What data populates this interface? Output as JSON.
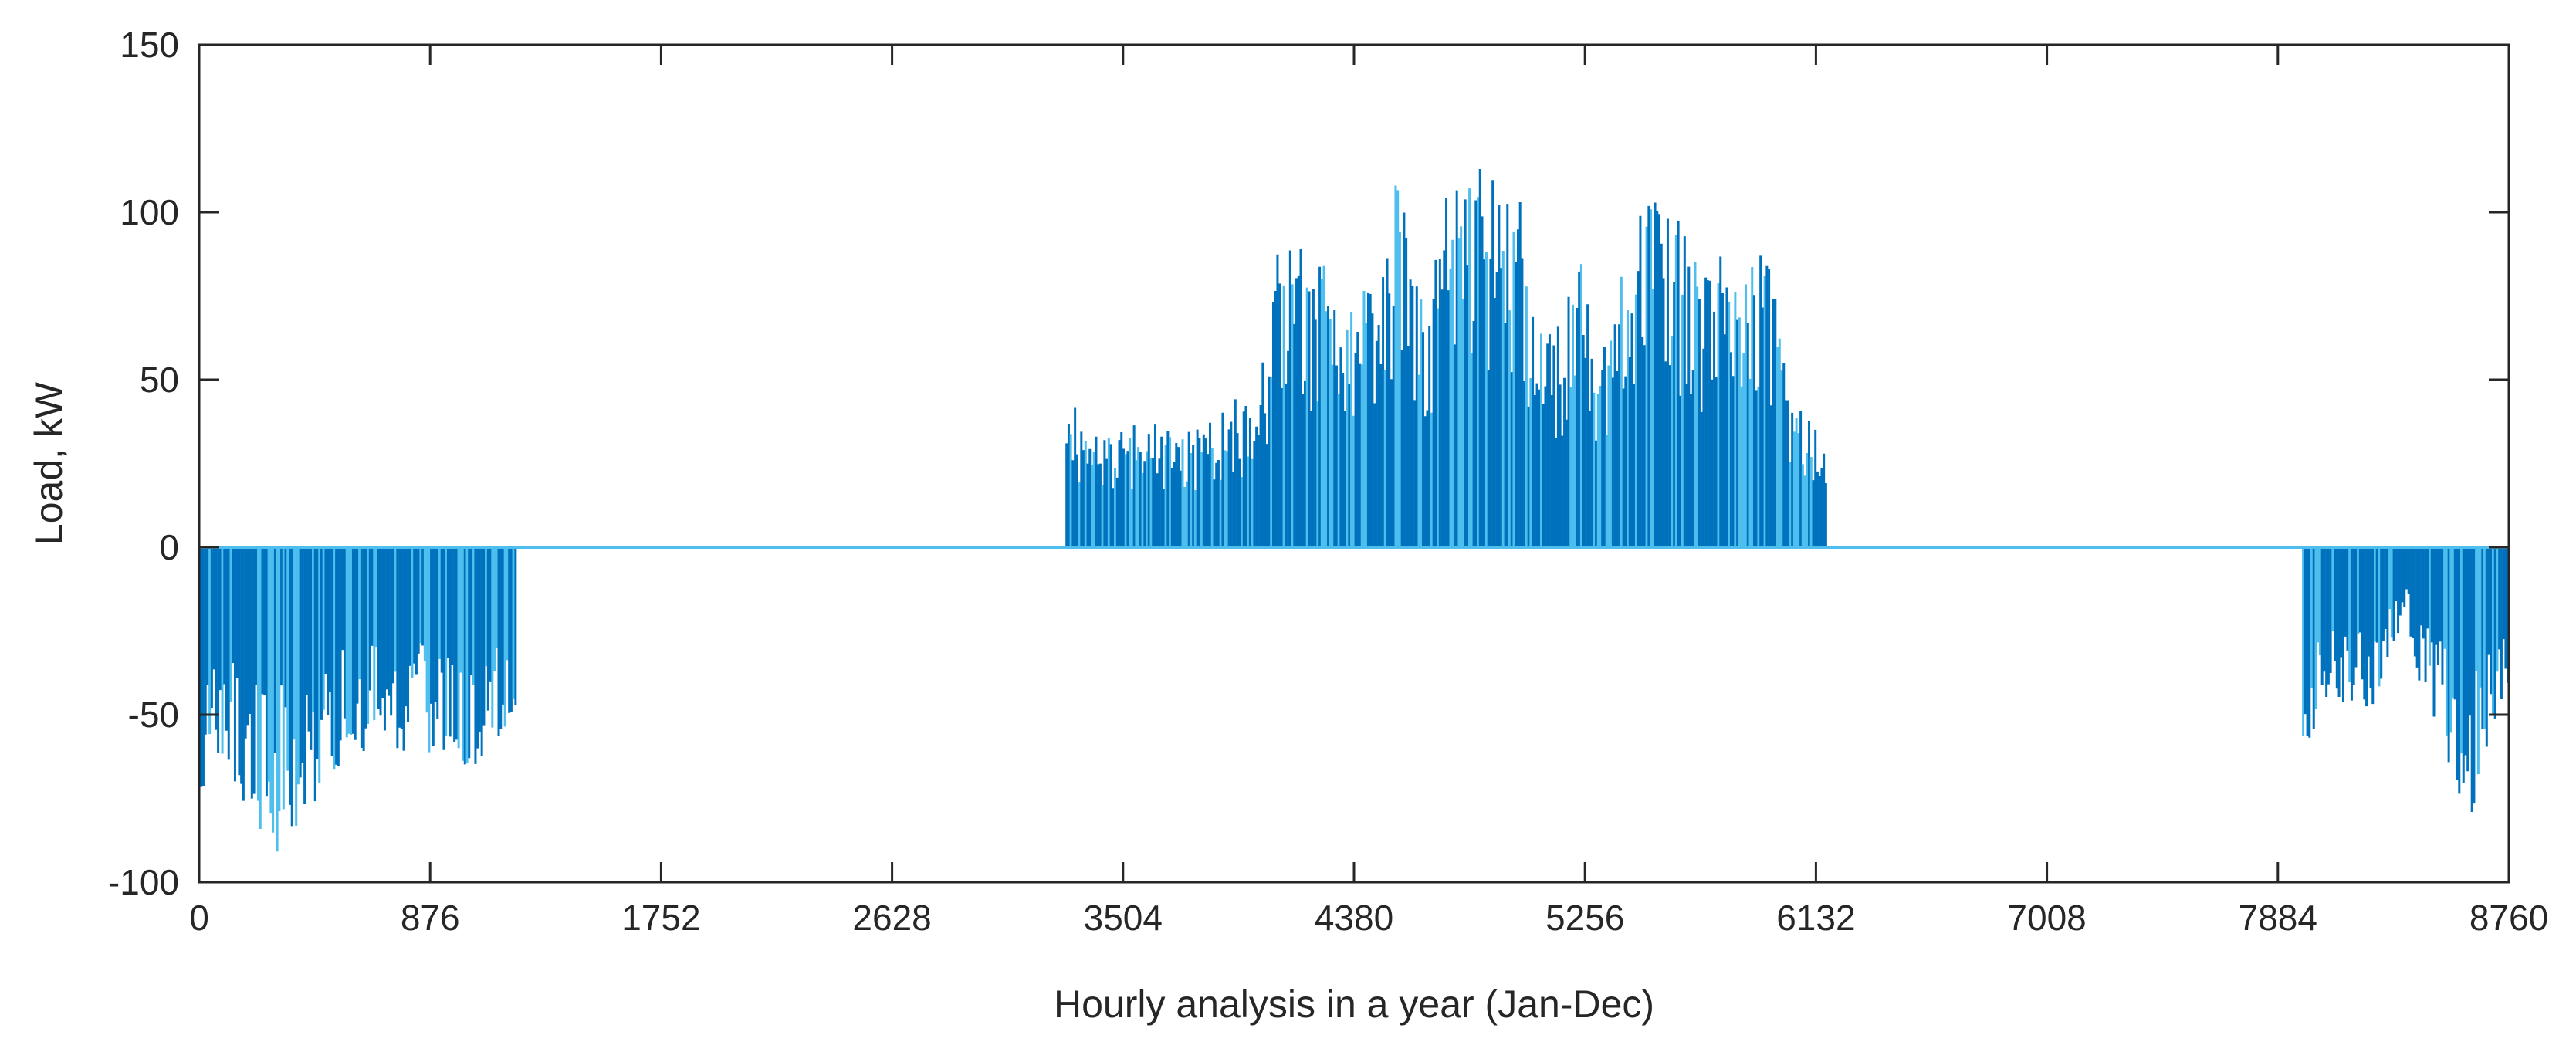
{
  "chart_data": {
    "type": "bar",
    "title": "",
    "xlabel": "Hourly analysis in a year (Jan-Dec)",
    "ylabel": "Load, kW",
    "xlim": [
      0,
      8760
    ],
    "ylim": [
      -100,
      150
    ],
    "xticks": [
      0,
      876,
      1752,
      2628,
      3504,
      4380,
      5256,
      6132,
      7008,
      7884,
      8760
    ],
    "yticks": [
      -100,
      -50,
      0,
      50,
      100,
      150
    ],
    "grid": false,
    "legend": "none",
    "colors": {
      "dark": "#0072BD",
      "light": "#4DBEEE",
      "axis": "#262626"
    },
    "envelope": {
      "heating_jan_feb": {
        "x_range": [
          0,
          1200
        ],
        "points": [
          [
            0,
            -75
          ],
          [
            100,
            -70
          ],
          [
            200,
            -80
          ],
          [
            300,
            -93
          ],
          [
            400,
            -80
          ],
          [
            500,
            -70
          ],
          [
            600,
            -62
          ],
          [
            700,
            -60
          ],
          [
            800,
            -62
          ],
          [
            876,
            -65
          ],
          [
            950,
            -70
          ],
          [
            1050,
            -75
          ],
          [
            1150,
            -55
          ],
          [
            1200,
            -48
          ]
        ]
      },
      "cooling_may_sep": {
        "x_range": [
          3290,
          6170
        ],
        "points": [
          [
            3290,
            46
          ],
          [
            3400,
            35
          ],
          [
            3600,
            38
          ],
          [
            3800,
            35
          ],
          [
            4000,
            50
          ],
          [
            4050,
            58
          ],
          [
            4110,
            103
          ],
          [
            4200,
            85
          ],
          [
            4280,
            97
          ],
          [
            4330,
            60
          ],
          [
            4400,
            88
          ],
          [
            4480,
            90
          ],
          [
            4540,
            115
          ],
          [
            4600,
            88
          ],
          [
            4660,
            80
          ],
          [
            4750,
            118
          ],
          [
            4850,
            117
          ],
          [
            4950,
            105
          ],
          [
            5000,
            112
          ],
          [
            5050,
            75
          ],
          [
            5150,
            65
          ],
          [
            5230,
            100
          ],
          [
            5300,
            50
          ],
          [
            5380,
            100
          ],
          [
            5430,
            90
          ],
          [
            5500,
            118
          ],
          [
            5560,
            103
          ],
          [
            5650,
            95
          ],
          [
            5700,
            80
          ],
          [
            5800,
            90
          ],
          [
            5900,
            88
          ],
          [
            5950,
            93
          ],
          [
            6000,
            68
          ],
          [
            6050,
            40
          ],
          [
            6100,
            42
          ],
          [
            6170,
            40
          ]
        ]
      },
      "heating_nov_dec": {
        "x_range": [
          7980,
          8760
        ],
        "points": [
          [
            7980,
            -68
          ],
          [
            8050,
            -45
          ],
          [
            8150,
            -50
          ],
          [
            8250,
            -48
          ],
          [
            8330,
            -32
          ],
          [
            8380,
            -25
          ],
          [
            8440,
            -50
          ],
          [
            8520,
            -65
          ],
          [
            8600,
            -83
          ],
          [
            8680,
            -70
          ],
          [
            8760,
            -40
          ]
        ]
      }
    }
  }
}
